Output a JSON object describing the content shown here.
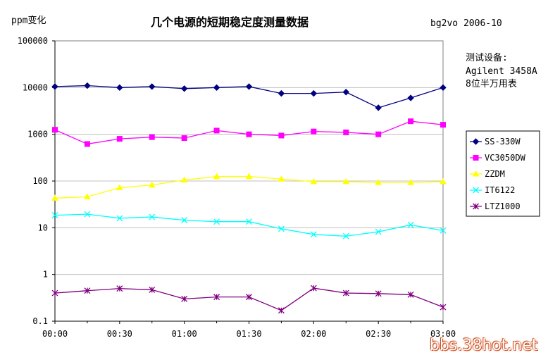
{
  "header": {
    "ylabel": "ppm变化",
    "title": "几个电源的短期稳定度测量数据",
    "author_date": "bg2vo 2006-10"
  },
  "note": {
    "line1": "测试设备:",
    "line2": "Agilent 3458A",
    "line3": "8位半万用表"
  },
  "watermark": "bbs.38hot.net",
  "chart_data": {
    "type": "line",
    "title": "几个电源的短期稳定度测量数据",
    "xlabel": "",
    "ylabel": "ppm变化",
    "yscale": "log",
    "ylim": [
      0.1,
      100000
    ],
    "y_ticks": [
      "100000",
      "10000",
      "1000",
      "100",
      "10",
      "1",
      "0.1"
    ],
    "x_tick_labels": [
      "00:00",
      "00:30",
      "01:00",
      "01:30",
      "02:00",
      "02:30",
      "03:00"
    ],
    "x": [
      "00:00",
      "00:15",
      "00:30",
      "00:45",
      "01:00",
      "01:15",
      "01:30",
      "01:45",
      "02:00",
      "02:15",
      "02:30",
      "02:45",
      "03:00"
    ],
    "grid": true,
    "legend_position": "right",
    "series": [
      {
        "name": "SS-330W",
        "color": "#000080",
        "marker": "diamond",
        "values": [
          10500,
          11000,
          10000,
          10500,
          9500,
          10000,
          10500,
          7500,
          7500,
          8000,
          3700,
          6000,
          10000
        ]
      },
      {
        "name": "VC3050DW",
        "color": "#ff00ff",
        "marker": "square",
        "values": [
          1250,
          620,
          800,
          870,
          830,
          1200,
          1000,
          940,
          1150,
          1100,
          1000,
          1900,
          1600
        ]
      },
      {
        "name": "ZZDM",
        "color": "#ffff00",
        "marker": "triangle",
        "values": [
          43,
          46,
          72,
          82,
          105,
          125,
          125,
          110,
          97,
          97,
          93,
          93,
          97
        ]
      },
      {
        "name": "IT6122",
        "color": "#00ffff",
        "marker": "x",
        "values": [
          18.5,
          19.5,
          16,
          17,
          14.5,
          13.5,
          13.5,
          9.5,
          7.2,
          6.6,
          8.2,
          11.5,
          8.7
        ]
      },
      {
        "name": "LTZ1000",
        "color": "#800080",
        "marker": "star",
        "values": [
          0.4,
          0.45,
          0.5,
          0.47,
          0.3,
          0.33,
          0.33,
          0.17,
          0.51,
          0.4,
          0.39,
          0.37,
          0.2
        ]
      }
    ]
  }
}
